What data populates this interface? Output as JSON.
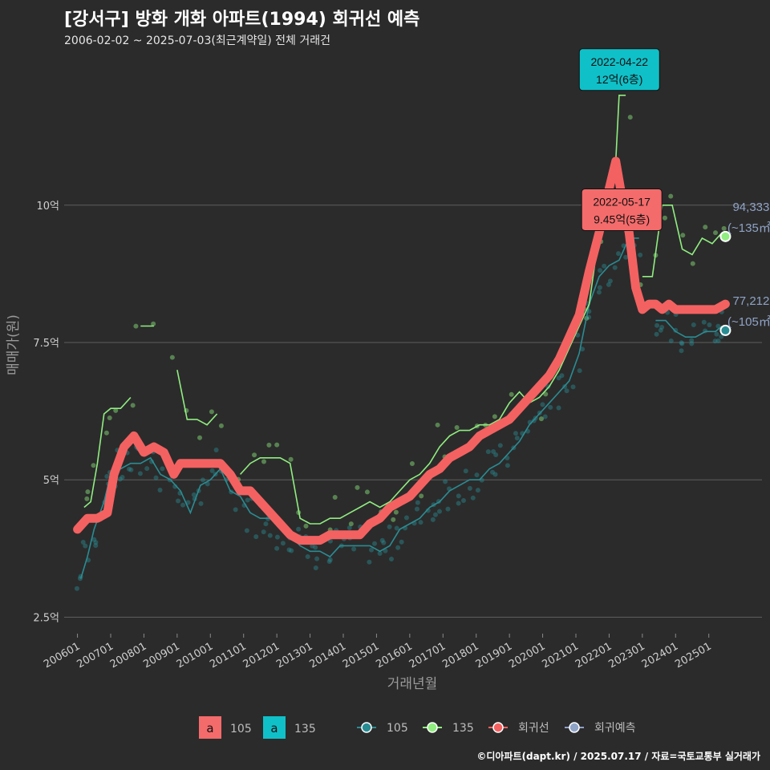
{
  "header": {
    "title": "[강서구] 방화 개화 아파트(1994) 회귀선 예측",
    "subtitle": "2006-02-02 ~ 2025-07-03(최근계약일) 전체 거래건"
  },
  "source": "©디아파트(dapt.kr) / 2025.07.17 / 자료=국토교통부 실거래가",
  "colors": {
    "bg": "#2b2b2b",
    "grid": "#5e5e5e",
    "s105": "#2a8c93",
    "s135": "#90ee80",
    "regression": "#f46161",
    "prediction": "#8fa3c7",
    "ann_teal": "#10c0c8",
    "ann_red": "#f46b6b"
  },
  "chart_data": {
    "type": "line",
    "xlabel": "거래년월",
    "ylabel": "매매가(원)",
    "ylim": [
      2.2,
      12.8
    ],
    "xlim": [
      2005.6,
      2026.6
    ],
    "y_ticks": [
      {
        "v": 2.5,
        "label": "2.5억"
      },
      {
        "v": 5,
        "label": "5억"
      },
      {
        "v": 7.5,
        "label": "7.5억"
      },
      {
        "v": 10,
        "label": "10억"
      }
    ],
    "x_ticks": [
      {
        "v": 2006.0,
        "label": "200601"
      },
      {
        "v": 2007.0,
        "label": "200701"
      },
      {
        "v": 2008.0,
        "label": "200801"
      },
      {
        "v": 2009.0,
        "label": "200901"
      },
      {
        "v": 2010.0,
        "label": "201001"
      },
      {
        "v": 2011.0,
        "label": "201101"
      },
      {
        "v": 2012.0,
        "label": "201201"
      },
      {
        "v": 2013.0,
        "label": "201301"
      },
      {
        "v": 2014.0,
        "label": "201401"
      },
      {
        "v": 2015.0,
        "label": "201501"
      },
      {
        "v": 2016.0,
        "label": "201601"
      },
      {
        "v": 2017.0,
        "label": "201701"
      },
      {
        "v": 2018.0,
        "label": "201801"
      },
      {
        "v": 2019.0,
        "label": "201901"
      },
      {
        "v": 2020.0,
        "label": "202001"
      },
      {
        "v": 2021.0,
        "label": "202101"
      },
      {
        "v": 2022.0,
        "label": "202201"
      },
      {
        "v": 2023.0,
        "label": "202301"
      },
      {
        "v": 2024.0,
        "label": "202401"
      },
      {
        "v": 2025.0,
        "label": "202501"
      }
    ],
    "series": [
      {
        "name": "105",
        "color": "#2a8c93",
        "x": [
          2006.1,
          2006.3,
          2006.5,
          2006.8,
          2007.0,
          2007.3,
          2007.6,
          2007.9,
          2008.2,
          2008.5,
          2008.8,
          2009.1,
          2009.4,
          2009.7,
          2010.0,
          2010.3,
          2010.6,
          2010.9,
          2011.2,
          2011.5,
          2011.8,
          2012.1,
          2012.4,
          2012.7,
          2013.0,
          2013.3,
          2013.6,
          2013.9,
          2014.2,
          2014.5,
          2014.8,
          2015.1,
          2015.4,
          2015.7,
          2016.0,
          2016.3,
          2016.6,
          2016.9,
          2017.2,
          2017.5,
          2017.8,
          2018.1,
          2018.4,
          2018.7,
          2019.0,
          2019.3,
          2019.6,
          2019.9,
          2020.2,
          2020.5,
          2020.8,
          2021.1,
          2021.4,
          2021.7,
          2022.0,
          2022.3,
          2022.6,
          2022.9,
          2023.1,
          2023.4,
          2023.7,
          2024.0,
          2024.3,
          2024.6,
          2024.9,
          2025.2,
          2025.4
        ],
        "values": [
          3.2,
          3.6,
          4.1,
          4.6,
          5.1,
          5.2,
          5.3,
          5.3,
          5.4,
          5.1,
          5.0,
          4.8,
          4.4,
          4.9,
          5.0,
          5.2,
          4.8,
          4.7,
          4.4,
          4.3,
          4.3,
          4.1,
          4.0,
          3.8,
          3.7,
          3.7,
          3.6,
          3.8,
          3.8,
          3.8,
          3.8,
          3.7,
          3.8,
          4.1,
          4.2,
          4.3,
          4.5,
          4.6,
          4.8,
          4.9,
          5.0,
          5.0,
          5.2,
          5.3,
          5.5,
          5.7,
          6.0,
          6.2,
          6.4,
          6.6,
          6.8,
          7.3,
          8.2,
          8.7,
          8.9,
          9.0,
          9.4,
          9.4,
          null,
          7.9,
          7.9,
          7.7,
          7.6,
          7.6,
          7.7,
          7.7,
          7.8
        ]
      },
      {
        "name": "135",
        "color": "#90ee80",
        "x": [
          2006.2,
          2006.4,
          2006.6,
          2006.8,
          2007.0,
          2007.3,
          2007.6,
          null,
          2007.9,
          2008.3,
          null,
          2009.0,
          2009.3,
          2009.6,
          2009.9,
          2010.2,
          null,
          2010.9,
          2011.2,
          2011.5,
          2011.8,
          2012.1,
          2012.4,
          2012.7,
          2013.0,
          2013.3,
          2013.6,
          2013.9,
          2014.2,
          2014.5,
          2014.8,
          2015.1,
          2015.4,
          2015.7,
          2016.0,
          2016.3,
          2016.6,
          2016.9,
          2017.2,
          2017.5,
          2017.8,
          2018.1,
          2018.4,
          2018.7,
          2019.0,
          2019.3,
          2019.6,
          2019.9,
          2020.2,
          2020.5,
          2020.8,
          2021.1,
          2021.4,
          2021.7,
          2022.0,
          2022.2,
          2022.3,
          2022.5,
          null,
          2023.0,
          2023.3,
          2023.6,
          2023.9,
          2024.2,
          2024.5,
          2024.8,
          2025.1,
          2025.4
        ],
        "values": [
          4.5,
          4.6,
          5.3,
          6.2,
          6.3,
          6.3,
          6.5,
          null,
          7.8,
          7.8,
          null,
          7.0,
          6.1,
          6.1,
          6.0,
          6.2,
          null,
          5.1,
          5.3,
          5.4,
          5.4,
          5.4,
          5.3,
          4.3,
          4.2,
          4.2,
          4.3,
          4.3,
          4.4,
          4.5,
          4.6,
          4.5,
          4.6,
          4.8,
          5.0,
          5.1,
          5.3,
          5.6,
          5.8,
          5.9,
          5.9,
          6.0,
          6.0,
          6.1,
          6.4,
          6.6,
          6.4,
          6.5,
          6.7,
          7.0,
          7.4,
          7.8,
          8.2,
          9.5,
          10.2,
          10.8,
          12.0,
          12.0,
          null,
          8.7,
          8.7,
          10.0,
          10.0,
          9.2,
          9.1,
          9.4,
          9.3,
          9.5
        ]
      },
      {
        "name": "회귀선",
        "color": "#f46161",
        "x": [
          2006.0,
          2006.3,
          2006.6,
          2006.9,
          2007.1,
          2007.4,
          2007.7,
          2008.0,
          2008.3,
          2008.6,
          2008.9,
          2009.1,
          2009.4,
          2009.7,
          2010.0,
          2010.3,
          2010.6,
          2010.9,
          2011.2,
          2011.5,
          2011.8,
          2012.1,
          2012.4,
          2012.7,
          2013.0,
          2013.3,
          2013.6,
          2013.9,
          2014.2,
          2014.5,
          2014.8,
          2015.1,
          2015.4,
          2015.7,
          2016.0,
          2016.3,
          2016.6,
          2016.9,
          2017.2,
          2017.5,
          2017.8,
          2018.1,
          2018.4,
          2018.7,
          2019.0,
          2019.3,
          2019.6,
          2019.9,
          2020.2,
          2020.5,
          2020.8,
          2021.1,
          2021.4,
          2021.7,
          2022.0,
          2022.2,
          2022.4,
          2022.6,
          2022.8,
          2023.0,
          2023.2,
          2023.4,
          2023.6,
          2023.8,
          2024.0,
          2024.3,
          2024.6,
          2024.9,
          2025.2,
          2025.5
        ],
        "values": [
          4.1,
          4.3,
          4.3,
          4.4,
          5.1,
          5.6,
          5.8,
          5.5,
          5.6,
          5.5,
          5.1,
          5.3,
          5.3,
          5.3,
          5.3,
          5.3,
          5.1,
          4.8,
          4.8,
          4.6,
          4.4,
          4.2,
          4.0,
          3.9,
          3.9,
          3.9,
          4.0,
          4.0,
          4.0,
          4.0,
          4.2,
          4.3,
          4.5,
          4.6,
          4.7,
          4.9,
          5.1,
          5.2,
          5.4,
          5.5,
          5.6,
          5.8,
          5.9,
          6.0,
          6.1,
          6.3,
          6.5,
          6.7,
          6.9,
          7.2,
          7.6,
          8.0,
          8.8,
          9.5,
          10.3,
          10.8,
          10.1,
          9.5,
          8.5,
          8.1,
          8.2,
          8.2,
          8.1,
          8.2,
          8.1,
          8.1,
          8.1,
          8.1,
          8.1,
          8.2
        ]
      },
      {
        "name": "회귀예측",
        "color": "#8fa3c7",
        "x": [
          2025.5,
          2025.5
        ],
        "values": [
          9.43,
          7.72
        ]
      }
    ],
    "annotations": [
      {
        "type": "max",
        "date": "2022-04-22",
        "price": "12억(6층)",
        "x": 2022.31,
        "y": 12.0,
        "color": "#10c0c8"
      },
      {
        "type": "recent",
        "date": "2022-05-17",
        "price": "9.45억(5층)",
        "x": 2022.38,
        "y": 9.45,
        "color": "#f46b6b"
      }
    ],
    "predictions": [
      {
        "value": "94,333",
        "area": "(~135㎡)",
        "x": 2025.5,
        "y": 9.43,
        "color": "#90ee80"
      },
      {
        "value": "77,212",
        "area": "(~105㎡)",
        "x": 2025.5,
        "y": 7.72,
        "color": "#2a8c93"
      }
    ],
    "legend": {
      "area_keys": [
        {
          "glyph": "a",
          "label": "105",
          "color": "#f46b6b"
        },
        {
          "glyph": "a",
          "label": "135",
          "color": "#10c0c8"
        }
      ],
      "line_keys": [
        {
          "label": "105",
          "color": "#2a8c93"
        },
        {
          "label": "135",
          "color": "#90ee80"
        },
        {
          "label": "회귀선",
          "color": "#f46161"
        },
        {
          "label": "회귀예측",
          "color": "#8fa3c7"
        }
      ]
    }
  }
}
